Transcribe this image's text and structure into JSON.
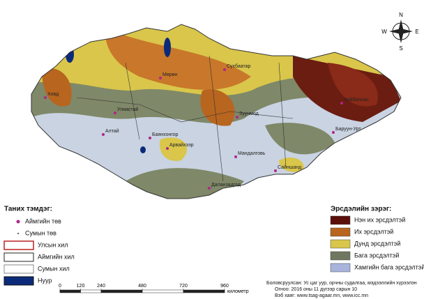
{
  "legend_left": {
    "title": "Таних тэмдэг:",
    "items": [
      "Аймгийн төв",
      "Сумын төв",
      "Улсын хил",
      "Аймгийн хил",
      "Сумын хил",
      "Нуур"
    ]
  },
  "legend_right": {
    "title": "Эрсдэлийн зэрэг:",
    "items": [
      "Нэн их эрсдэлтэй",
      "Их эрсдэлтэй",
      "Дунд эрсдэлтэй",
      "Бага эрсдэлтэй",
      "Хамгийн бага эрсдэлтэй"
    ]
  },
  "scale": {
    "ticks": [
      0,
      120,
      240,
      480,
      720,
      960
    ],
    "unit": "километр"
  },
  "compass": [
    "N",
    "E",
    "S",
    "W"
  ],
  "cities": [
    "Ховд",
    "Улиастай",
    "Алтай",
    "Баянхонгор",
    "Арвайхээр",
    "Мандалговь",
    "Даланзадгад",
    "Сайншанд",
    "Баруун-Урт",
    "Чойбалсан",
    "Сүхбаатар",
    "Зуунмод",
    "Мөрөн"
  ],
  "credits": [
    "Боловсруулсан: Ус цаг уур, орчны судалгаа, мэдээллийн хүрээлэн",
    "Огноо: 2016 оны 11 дүгээр сарын 10",
    "Вэб хаяг: www.tsag-agaar.mn, www.icc.mn"
  ]
}
